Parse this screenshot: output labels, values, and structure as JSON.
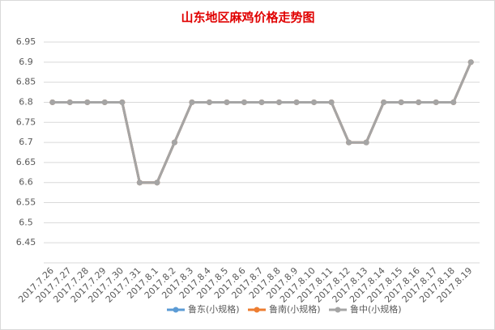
{
  "chart_data": {
    "type": "line",
    "title": "山东地区麻鸡价格走势图",
    "categories": [
      "2017.7.26",
      "2017.7.27",
      "2017.7.28",
      "2017.7.29",
      "2017.7.30",
      "2017.7.31",
      "2017.8.1",
      "2017.8.2",
      "2017.8.3",
      "2017.8.4",
      "2017.8.5",
      "2017.8.6",
      "2017.8.7",
      "2017.8.8",
      "2017.8.9",
      "2017.8.10",
      "2017.8.11",
      "2017.8.12",
      "2017.8.13",
      "2017.8.14",
      "2017.8.15",
      "2017.8.16",
      "2017.8.17",
      "2017.8.18",
      "2017.8.19"
    ],
    "series": [
      {
        "name": "鲁东(小规格)",
        "color": "#5b9bd5",
        "values": [
          6.8,
          6.8,
          6.8,
          6.8,
          6.8,
          6.6,
          6.6,
          6.7,
          6.8,
          6.8,
          6.8,
          6.8,
          6.8,
          6.8,
          6.8,
          6.8,
          6.8,
          6.7,
          6.7,
          6.8,
          6.8,
          6.8,
          6.8,
          6.8,
          6.9
        ]
      },
      {
        "name": "鲁南(小规格)",
        "color": "#ed7d31",
        "values": [
          6.8,
          6.8,
          6.8,
          6.8,
          6.8,
          6.6,
          6.6,
          6.7,
          6.8,
          6.8,
          6.8,
          6.8,
          6.8,
          6.8,
          6.8,
          6.8,
          6.8,
          6.7,
          6.7,
          6.8,
          6.8,
          6.8,
          6.8,
          6.8,
          6.9
        ]
      },
      {
        "name": "鲁中(小规格)",
        "color": "#a5a5a5",
        "values": [
          6.8,
          6.8,
          6.8,
          6.8,
          6.8,
          6.6,
          6.6,
          6.7,
          6.8,
          6.8,
          6.8,
          6.8,
          6.8,
          6.8,
          6.8,
          6.8,
          6.8,
          6.7,
          6.7,
          6.8,
          6.8,
          6.8,
          6.8,
          6.8,
          6.9
        ]
      }
    ],
    "ylim": [
      6.4,
      6.95
    ],
    "yticks": [
      6.45,
      6.5,
      6.55,
      6.6,
      6.65,
      6.7,
      6.75,
      6.8,
      6.85,
      6.9,
      6.95
    ],
    "grid": true,
    "legend": "bottom"
  }
}
